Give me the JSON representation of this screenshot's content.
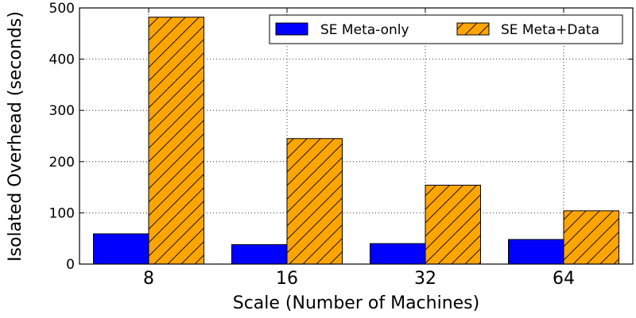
{
  "chart_data": {
    "type": "bar",
    "title": "",
    "xlabel": "Scale (Number of Machines)",
    "ylabel": "Isolated Overhead (seconds)",
    "categories": [
      "8",
      "16",
      "32",
      "64"
    ],
    "ylim": [
      0,
      500
    ],
    "yticks": [
      "0",
      "100",
      "200",
      "300",
      "400",
      "500"
    ],
    "grid": true,
    "legend_position": "top-right",
    "series": [
      {
        "name": "SE Meta-only",
        "color": "#0000ff",
        "hatch": "none",
        "values": [
          59,
          38,
          40,
          48
        ]
      },
      {
        "name": "SE Meta+Data",
        "color": "#ffa500",
        "hatch": "diagonal",
        "values": [
          482,
          245,
          154,
          104
        ]
      }
    ]
  }
}
